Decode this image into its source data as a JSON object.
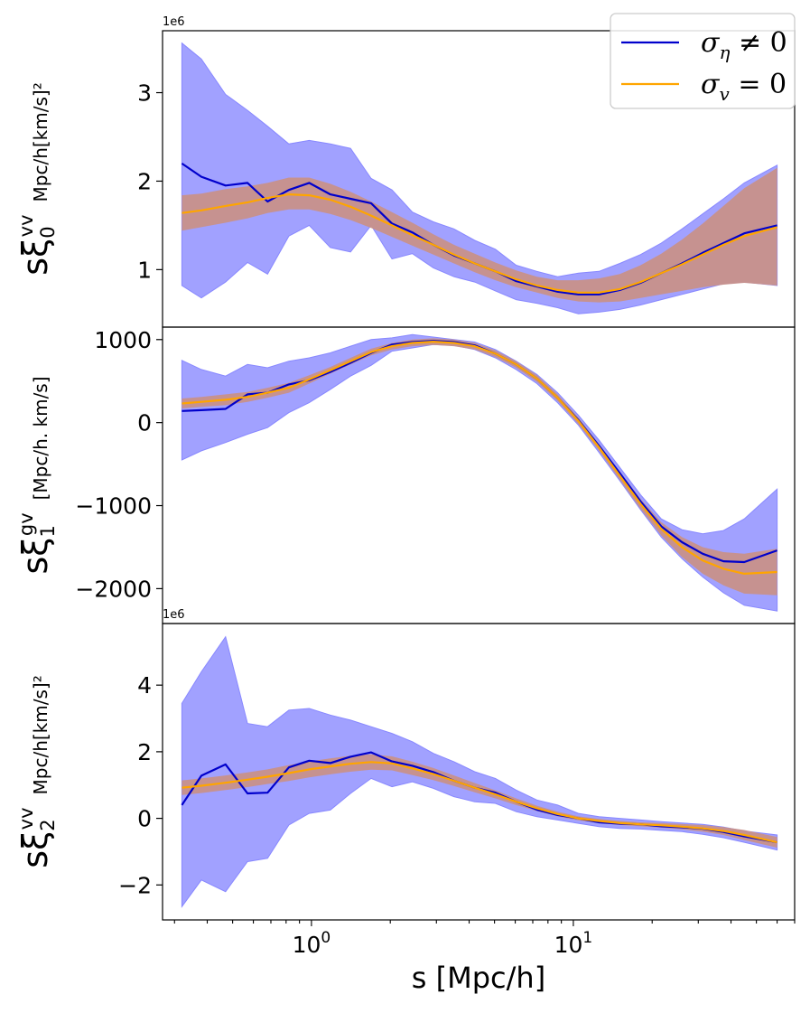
{
  "chart_data": {
    "type": "line",
    "xscale": "log",
    "xlim": [
      0.27,
      70
    ],
    "xlabel": "s [Mpc/h]",
    "xticks": [
      {
        "value": 1,
        "base": "10",
        "exp": "0"
      },
      {
        "value": 10,
        "base": "10",
        "exp": "1"
      }
    ],
    "x": [
      0.32,
      0.38,
      0.47,
      0.57,
      0.68,
      0.82,
      0.98,
      1.18,
      1.41,
      1.69,
      2.03,
      2.43,
      2.92,
      3.5,
      4.2,
      5.04,
      6.05,
      7.26,
      8.71,
      10.45,
      12.54,
      15.05,
      18.06,
      21.67,
      26.0,
      31.2,
      37.44,
      44.93,
      60.0
    ],
    "legend": [
      {
        "label": "σ",
        "sub": "η",
        "rest": " ≠ 0",
        "color": "#0000cc"
      },
      {
        "label": "σ",
        "sub": "v",
        "rest": " = 0",
        "color": "#ffa500"
      }
    ],
    "panels": [
      {
        "ylabel": {
          "main": "sξ",
          "sup": "vv",
          "sub": "0",
          "units": "Mpc/h[km/s]²"
        },
        "exponent": "1e6",
        "ylim": [
          0.35,
          3.7
        ],
        "yticks": [
          1,
          2,
          3
        ],
        "yticklabels": [
          "1",
          "2",
          "3"
        ],
        "series": [
          {
            "name": "σ_η ≠ 0",
            "color": "#0000cc",
            "values": [
              2.2,
              2.05,
              1.95,
              1.98,
              1.77,
              1.9,
              1.98,
              1.85,
              1.8,
              1.75,
              1.52,
              1.42,
              1.28,
              1.16,
              1.07,
              0.98,
              0.87,
              0.81,
              0.75,
              0.72,
              0.72,
              0.77,
              0.85,
              0.96,
              1.07,
              1.19,
              1.3,
              1.41,
              1.5
            ]
          },
          {
            "name": "σ_v = 0",
            "color": "#ffa500",
            "values": [
              1.64,
              1.67,
              1.72,
              1.76,
              1.81,
              1.85,
              1.84,
              1.79,
              1.71,
              1.61,
              1.5,
              1.39,
              1.28,
              1.17,
              1.07,
              0.98,
              0.89,
              0.82,
              0.77,
              0.74,
              0.74,
              0.78,
              0.86,
              0.96,
              1.06,
              1.17,
              1.28,
              1.38,
              1.48
            ]
          }
        ],
        "bands": [
          {
            "color": "#9999ff",
            "lower": [
              0.82,
              0.68,
              0.86,
              1.08,
              0.95,
              1.38,
              1.5,
              1.25,
              1.2,
              1.5,
              1.12,
              1.18,
              1.02,
              0.92,
              0.86,
              0.76,
              0.66,
              0.62,
              0.57,
              0.5,
              0.52,
              0.55,
              0.6,
              0.66,
              0.72,
              0.78,
              0.84,
              0.86,
              0.82
            ]
          },
          {
            "color": "#9999ff",
            "upper": [
              3.56,
              3.38,
              2.98,
              2.8,
              2.62,
              2.42,
              2.46,
              2.42,
              2.37,
              2.03,
              1.9,
              1.65,
              1.54,
              1.46,
              1.33,
              1.23,
              1.05,
              0.98,
              0.92,
              0.96,
              0.98,
              1.07,
              1.17,
              1.3,
              1.46,
              1.63,
              1.8,
              1.98,
              2.18
            ]
          },
          {
            "color": "#c8918a",
            "lower": [
              1.44,
              1.48,
              1.53,
              1.58,
              1.64,
              1.68,
              1.68,
              1.63,
              1.56,
              1.47,
              1.37,
              1.27,
              1.17,
              1.07,
              0.97,
              0.88,
              0.8,
              0.74,
              0.68,
              0.64,
              0.63,
              0.64,
              0.68,
              0.72,
              0.76,
              0.8,
              0.83,
              0.85,
              0.82
            ]
          },
          {
            "color": "#c8918a",
            "upper": [
              1.84,
              1.86,
              1.91,
              1.94,
              1.98,
              2.04,
              2.04,
              1.97,
              1.88,
              1.77,
              1.65,
              1.53,
              1.4,
              1.28,
              1.18,
              1.08,
              0.99,
              0.92,
              0.88,
              0.88,
              0.9,
              0.95,
              1.05,
              1.18,
              1.34,
              1.52,
              1.72,
              1.92,
              2.15
            ]
          }
        ]
      },
      {
        "ylabel": {
          "main": "sξ",
          "sup": "gv",
          "sub": "1",
          "units": "[Mpc/h. km/s]"
        },
        "exponent": "",
        "ylim": [
          -2420,
          1150
        ],
        "yticks": [
          -2000,
          -1000,
          0,
          1000
        ],
        "yticklabels": [
          "−2000",
          "−1000",
          "0",
          "1000"
        ],
        "series": [
          {
            "name": "σ_η ≠ 0",
            "color": "#0000cc",
            "values": [
              140,
              150,
              165,
              340,
              360,
              460,
              510,
              610,
              720,
              840,
              940,
              970,
              985,
              970,
              930,
              830,
              700,
              530,
              300,
              30,
              -280,
              -610,
              -950,
              -1250,
              -1440,
              -1580,
              -1670,
              -1680,
              -1540
            ]
          },
          {
            "name": "σ_v = 0",
            "color": "#ffa500",
            "values": [
              230,
              250,
              275,
              310,
              360,
              420,
              520,
              630,
              740,
              850,
              920,
              960,
              975,
              960,
              920,
              830,
              700,
              530,
              300,
              20,
              -300,
              -640,
              -980,
              -1280,
              -1500,
              -1660,
              -1760,
              -1820,
              -1800
            ]
          }
        ],
        "bands": [
          {
            "color": "#9999ff",
            "lower": [
              -450,
              -340,
              -240,
              -140,
              -60,
              120,
              240,
              400,
              560,
              690,
              860,
              900,
              940,
              930,
              880,
              780,
              640,
              470,
              240,
              -30,
              -360,
              -700,
              -1050,
              -1380,
              -1640,
              -1860,
              -2050,
              -2200,
              -2270
            ]
          },
          {
            "color": "#9999ff",
            "upper": [
              750,
              640,
              560,
              700,
              660,
              740,
              780,
              840,
              920,
              1000,
              1020,
              1060,
              1030,
              1000,
              970,
              880,
              740,
              580,
              360,
              90,
              -210,
              -540,
              -870,
              -1160,
              -1290,
              -1340,
              -1300,
              -1160,
              -800
            ]
          },
          {
            "color": "#c8918a",
            "lower": [
              170,
              190,
              210,
              250,
              300,
              360,
              470,
              590,
              700,
              810,
              880,
              920,
              935,
              920,
              880,
              790,
              660,
              490,
              260,
              -20,
              -340,
              -690,
              -1040,
              -1360,
              -1620,
              -1820,
              -1960,
              -2060,
              -2080
            ]
          },
          {
            "color": "#c8918a",
            "upper": [
              290,
              310,
              340,
              370,
              420,
              480,
              570,
              670,
              780,
              890,
              960,
              1000,
              1015,
              1000,
              960,
              870,
              740,
              570,
              340,
              60,
              -260,
              -590,
              -920,
              -1200,
              -1380,
              -1500,
              -1560,
              -1580,
              -1520
            ]
          }
        ]
      },
      {
        "ylabel": {
          "main": "sξ",
          "sup": "vv",
          "sub": "2",
          "units": "Mpc/h[km/s]²"
        },
        "exponent": "1e6",
        "ylim": [
          -3.05,
          5.85
        ],
        "yticks": [
          -2,
          0,
          2,
          4
        ],
        "yticklabels": [
          "−2",
          "0",
          "2",
          "4"
        ],
        "series": [
          {
            "name": "σ_η ≠ 0",
            "color": "#0000cc",
            "values": [
              0.4,
              1.28,
              1.62,
              0.75,
              0.77,
              1.53,
              1.73,
              1.66,
              1.85,
              1.98,
              1.71,
              1.58,
              1.39,
              1.13,
              0.92,
              0.77,
              0.5,
              0.26,
              0.1,
              0.0,
              -0.12,
              -0.16,
              -0.18,
              -0.24,
              -0.27,
              -0.31,
              -0.41,
              -0.54,
              -0.72
            ]
          },
          {
            "name": "σ_v = 0",
            "color": "#ffa500",
            "values": [
              0.92,
              0.98,
              1.07,
              1.16,
              1.25,
              1.36,
              1.47,
              1.56,
              1.64,
              1.69,
              1.65,
              1.5,
              1.33,
              1.13,
              0.92,
              0.72,
              0.5,
              0.3,
              0.13,
              0.0,
              -0.08,
              -0.14,
              -0.18,
              -0.21,
              -0.25,
              -0.3,
              -0.38,
              -0.5,
              -0.72
            ]
          }
        ],
        "bands": [
          {
            "color": "#9999ff",
            "lower": [
              -2.65,
              -1.85,
              -2.2,
              -1.3,
              -1.2,
              -0.2,
              0.15,
              0.25,
              0.75,
              1.2,
              0.95,
              1.1,
              0.9,
              0.65,
              0.5,
              0.45,
              0.2,
              0.05,
              -0.05,
              -0.15,
              -0.25,
              -0.3,
              -0.32,
              -0.36,
              -0.4,
              -0.48,
              -0.58,
              -0.72,
              -0.95
            ]
          },
          {
            "color": "#9999ff",
            "upper": [
              3.45,
              4.4,
              5.45,
              2.85,
              2.75,
              3.25,
              3.3,
              3.1,
              2.95,
              2.75,
              2.55,
              2.3,
              1.95,
              1.7,
              1.4,
              1.2,
              0.85,
              0.55,
              0.4,
              0.15,
              0.05,
              0.0,
              -0.05,
              -0.1,
              -0.14,
              -0.18,
              -0.26,
              -0.38,
              -0.5
            ]
          },
          {
            "color": "#c8918a",
            "lower": [
              0.7,
              0.76,
              0.85,
              0.94,
              1.03,
              1.12,
              1.23,
              1.32,
              1.4,
              1.46,
              1.44,
              1.3,
              1.15,
              0.97,
              0.78,
              0.6,
              0.4,
              0.22,
              0.06,
              -0.06,
              -0.14,
              -0.2,
              -0.24,
              -0.28,
              -0.33,
              -0.4,
              -0.5,
              -0.65,
              -0.88
            ]
          },
          {
            "color": "#c8918a",
            "upper": [
              1.14,
              1.2,
              1.29,
              1.38,
              1.47,
              1.6,
              1.71,
              1.8,
              1.88,
              1.92,
              1.86,
              1.7,
              1.51,
              1.29,
              1.06,
              0.84,
              0.6,
              0.38,
              0.2,
              0.06,
              -0.02,
              -0.08,
              -0.12,
              -0.14,
              -0.17,
              -0.2,
              -0.26,
              -0.35,
              -0.56
            ]
          }
        ]
      }
    ]
  }
}
